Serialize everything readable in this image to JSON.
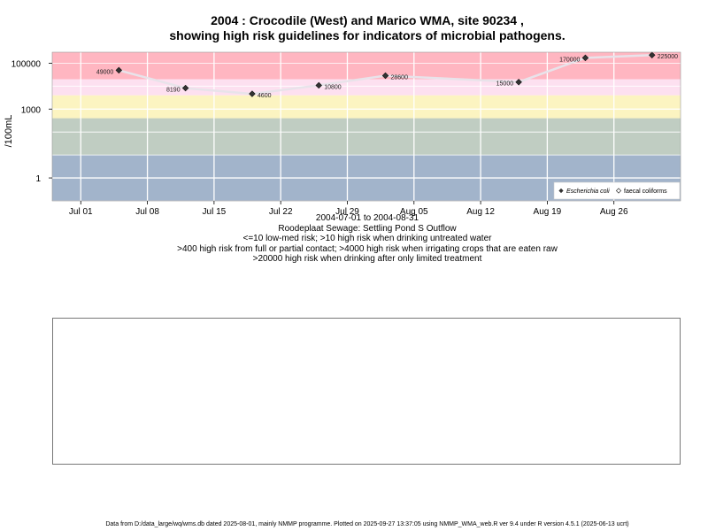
{
  "title_line1": "2004 : Crocodile (West) and Marico WMA, site 90234 ,",
  "title_line2": "showing high risk guidelines for indicators of microbial pathogens.",
  "subtitle_lines": [
    "2004-07-01 to 2004-08-31",
    "Roodeplaat Sewage: Settling Pond S Outflow",
    "<=10 low-med risk; >10 high risk when drinking untreated water",
    ">400 high risk from full or partial contact; >4000 high risk when irrigating crops that are eaten raw",
    ">20000 high risk when drinking after only limited treatment"
  ],
  "footer": "Data from D:/data_large/wq/wms.db dated 2025-08-01, mainly NMMP programme. Plotted on 2025-09-27 13:37:05 using NMMP_WMA_web.R ver 9.4 under R version 4.5.1 (2025-06-13 ucrt)",
  "chart_data": {
    "type": "scatter",
    "ylabel": "/100mL",
    "yscale": "log10",
    "ylim": [
      0.1,
      300000
    ],
    "xlim": [
      "2004-06-28",
      "2004-09-02"
    ],
    "x_ticks": [
      {
        "date": "2004-07-01",
        "label": "Jul 01"
      },
      {
        "date": "2004-07-08",
        "label": "Jul 08"
      },
      {
        "date": "2004-07-15",
        "label": "Jul 15"
      },
      {
        "date": "2004-07-22",
        "label": "Jul 22"
      },
      {
        "date": "2004-07-29",
        "label": "Jul 29"
      },
      {
        "date": "2004-08-05",
        "label": "Aug 05"
      },
      {
        "date": "2004-08-12",
        "label": "Aug 12"
      },
      {
        "date": "2004-08-19",
        "label": "Aug 19"
      },
      {
        "date": "2004-08-26",
        "label": "Aug 26"
      }
    ],
    "y_ticks": [
      {
        "value": 1,
        "label": "1"
      },
      {
        "value": 1000,
        "label": "1000"
      },
      {
        "value": 100000,
        "label": "100000"
      }
    ],
    "risk_bands": [
      {
        "from": 0.1,
        "to": 10,
        "color": "#a2b4cb"
      },
      {
        "from": 10,
        "to": 400,
        "color": "#c0cdc2"
      },
      {
        "from": 400,
        "to": 4000,
        "color": "#fcf4c1"
      },
      {
        "from": 4000,
        "to": 20000,
        "color": "#fde0f0"
      },
      {
        "from": 20000,
        "to": 300000,
        "color": "#ffb6c1"
      }
    ],
    "series": [
      {
        "name": "Escherichia coli",
        "marker": "filled-diamond",
        "color": "#333333",
        "points": [
          {
            "x": "2004-07-05",
            "y": 49000,
            "label": "49000",
            "label_side": "left"
          },
          {
            "x": "2004-07-12",
            "y": 8190,
            "label": "8190",
            "label_side": "left"
          },
          {
            "x": "2004-07-19",
            "y": 4600,
            "label": "4600",
            "label_side": "right"
          },
          {
            "x": "2004-07-26",
            "y": 10800,
            "label": "10800",
            "label_side": "right"
          },
          {
            "x": "2004-08-02",
            "y": 28600,
            "label": "28600",
            "label_side": "right"
          },
          {
            "x": "2004-08-16",
            "y": 15000,
            "label": "15000",
            "label_side": "left"
          },
          {
            "x": "2004-08-23",
            "y": 170000,
            "label": "170000",
            "label_side": "left"
          },
          {
            "x": "2004-08-30",
            "y": 225000,
            "label": "225000",
            "label_side": "right"
          }
        ]
      },
      {
        "name": "faecal coliforms",
        "marker": "open-diamond",
        "color": "#333333",
        "points": []
      }
    ],
    "legend_position": "bottom-right",
    "trend_line_color": "#e8e3ea"
  }
}
